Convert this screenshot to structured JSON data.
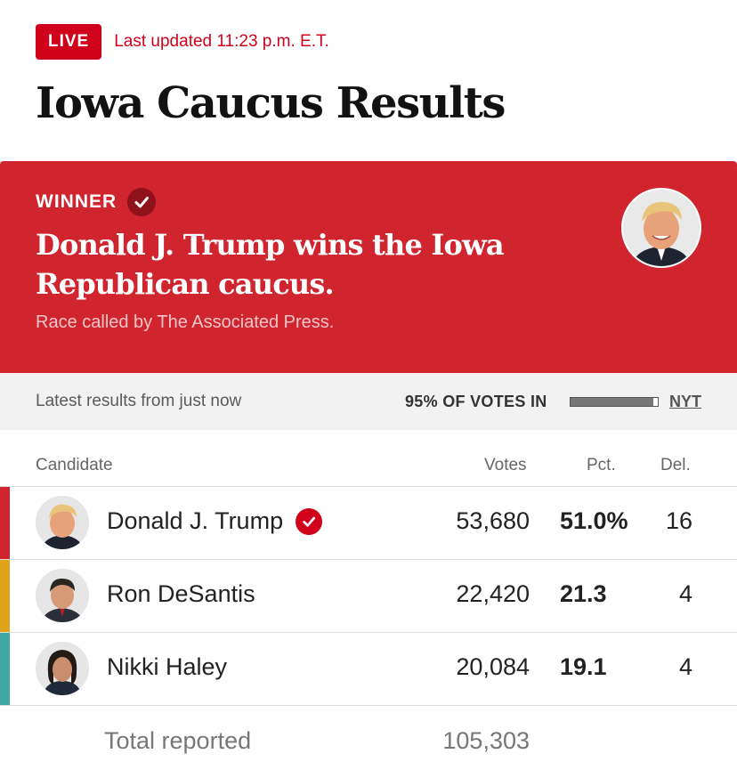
{
  "header": {
    "live_label": "LIVE",
    "updated": "Last updated 11:23 p.m. E.T.",
    "title": "Iowa Caucus Results"
  },
  "banner": {
    "winner_label": "WINNER",
    "headline": "Donald J. Trump wins the Iowa Republican caucus.",
    "called_by": "Race called by The Associated Press.",
    "background": "#d0242f"
  },
  "status": {
    "latest": "Latest results from just now",
    "votes_in": "95% OF VOTES IN",
    "votes_in_fraction": 0.95,
    "source_link": "NYT"
  },
  "table": {
    "columns": {
      "candidate": "Candidate",
      "votes": "Votes",
      "pct": "Pct.",
      "del": "Del."
    },
    "rows": [
      {
        "name": "Donald J. Trump",
        "votes": "53,680",
        "pct": "51.0%",
        "del": "16",
        "color": "#d0242f",
        "winner": true
      },
      {
        "name": "Ron DeSantis",
        "votes": "22,420",
        "pct": "21.3",
        "del": "4",
        "color": "#e0a41a",
        "winner": false
      },
      {
        "name": "Nikki Haley",
        "votes": "20,084",
        "pct": "19.1",
        "del": "4",
        "color": "#3fa7a3",
        "winner": false
      }
    ],
    "total": {
      "label": "Total reported",
      "votes": "105,303"
    }
  }
}
